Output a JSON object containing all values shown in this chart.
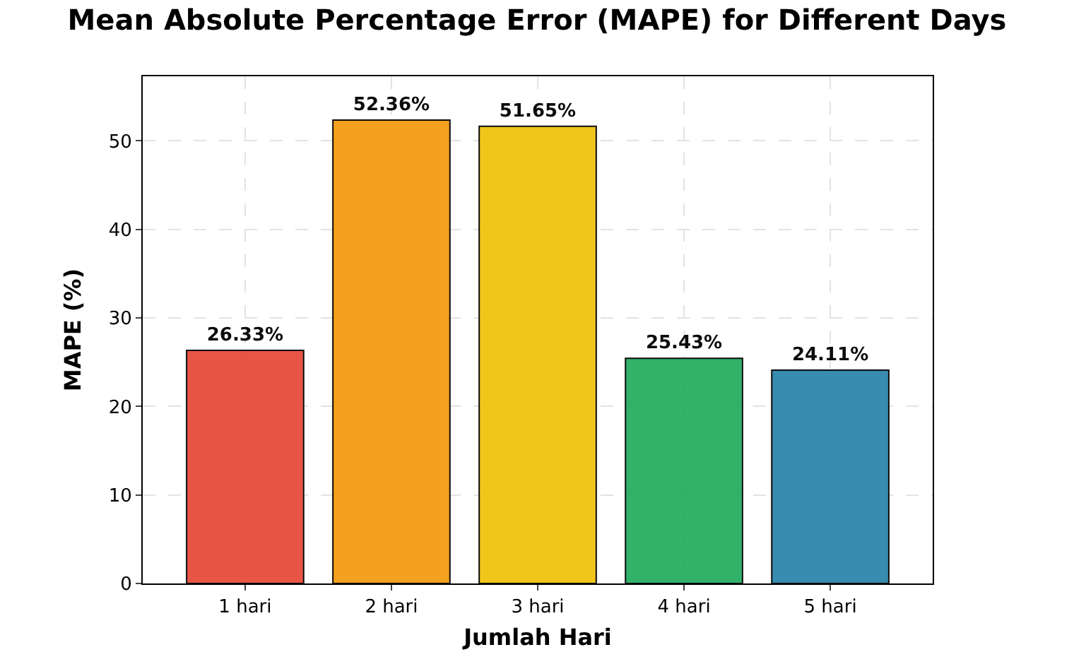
{
  "chart_data": {
    "type": "bar",
    "title": "Mean Absolute Percentage Error (MAPE) for Different Days",
    "xlabel": "Jumlah Hari",
    "ylabel": "MAPE (%)",
    "categories": [
      "1 hari",
      "2 hari",
      "3 hari",
      "4 hari",
      "5 hari"
    ],
    "values": [
      26.33,
      52.36,
      51.65,
      25.43,
      24.11
    ],
    "value_labels": [
      "26.33%",
      "52.36%",
      "51.65%",
      "25.43%",
      "24.11%"
    ],
    "colors": [
      "#e74c3c",
      "#f39c12",
      "#f1c40f",
      "#27ae60",
      "#2e86ab"
    ],
    "ylim": [
      0,
      57.3
    ],
    "yticks": [
      0,
      10,
      20,
      30,
      40,
      50
    ],
    "grid": true
  }
}
